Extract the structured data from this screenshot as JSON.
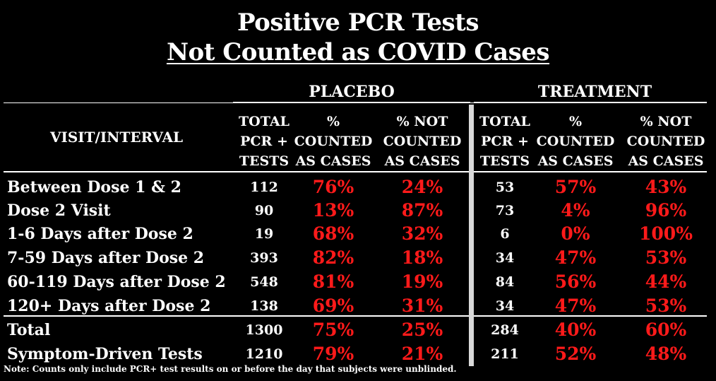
{
  "title_line1": "Positive PCR Tests",
  "title_line2": "Not Counted as COVID Cases",
  "note": "Note: Counts only include PCR+ test results on or before the day that subjects were unblinded.",
  "colors": {
    "background": "#000000",
    "text": "#ffffff",
    "percent": "#ff1a1a",
    "separator": "#d9d9d9"
  },
  "chart_data": {
    "type": "table",
    "groups": [
      "PLACEBO",
      "TREATMENT"
    ],
    "row_header": "VISIT/INTERVAL",
    "column_headers": [
      [
        "TOTAL",
        "PCR +",
        "TESTS"
      ],
      [
        "%",
        "COUNTED",
        "AS CASES"
      ],
      [
        "% NOT",
        "COUNTED",
        "AS CASES"
      ]
    ],
    "rows": [
      {
        "label": "Between Dose 1 & 2",
        "placebo": [
          "112",
          "76%",
          "24%"
        ],
        "treatment": [
          "53",
          "57%",
          "43%"
        ]
      },
      {
        "label": "Dose 2 Visit",
        "placebo": [
          "90",
          "13%",
          "87%"
        ],
        "treatment": [
          "73",
          "4%",
          "96%"
        ]
      },
      {
        "label": "1-6 Days after Dose 2",
        "placebo": [
          "19",
          "68%",
          "32%"
        ],
        "treatment": [
          "6",
          "0%",
          "100%"
        ]
      },
      {
        "label": "7-59 Days after Dose 2",
        "placebo": [
          "393",
          "82%",
          "18%"
        ],
        "treatment": [
          "34",
          "47%",
          "53%"
        ]
      },
      {
        "label": "60-119 Days after Dose 2",
        "placebo": [
          "548",
          "81%",
          "19%"
        ],
        "treatment": [
          "84",
          "56%",
          "44%"
        ]
      },
      {
        "label": "120+ Days after Dose 2",
        "placebo": [
          "138",
          "69%",
          "31%"
        ],
        "treatment": [
          "34",
          "47%",
          "53%"
        ]
      },
      {
        "label": "Total",
        "placebo": [
          "1300",
          "75%",
          "25%"
        ],
        "treatment": [
          "284",
          "40%",
          "60%"
        ]
      },
      {
        "label": "Symptom-Driven Tests",
        "placebo": [
          "1210",
          "79%",
          "21%"
        ],
        "treatment": [
          "211",
          "52%",
          "48%"
        ]
      }
    ]
  }
}
